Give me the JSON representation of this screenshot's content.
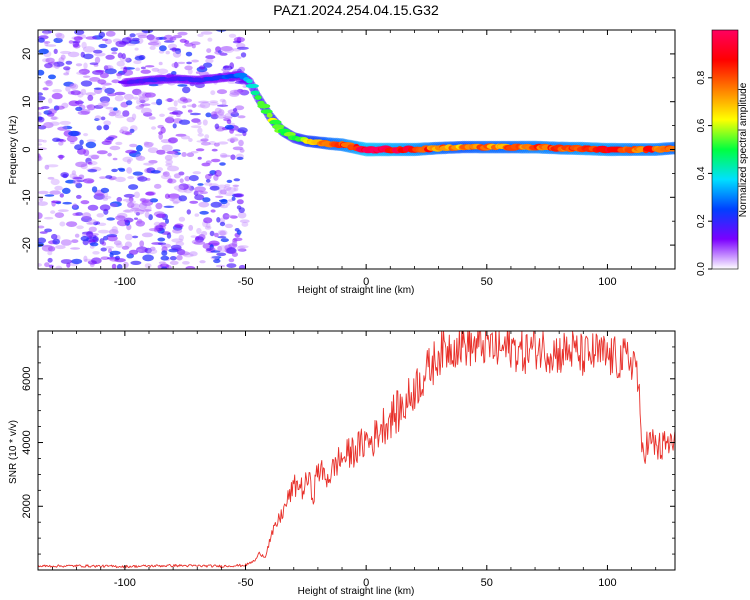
{
  "title": "PAZ1.2024.254.04.15.G32",
  "chart_data": [
    {
      "type": "heatmap",
      "title": "PAZ1.2024.254.04.15.G32",
      "xlabel": "Height of straight line (km)",
      "ylabel": "Frequency (Hz)",
      "xlim": [
        -136,
        128
      ],
      "ylim": [
        -25,
        25
      ],
      "xticks": [
        -100,
        -50,
        0,
        50,
        100
      ],
      "yticks": [
        -20,
        -10,
        0,
        10,
        20
      ],
      "grid": false,
      "noise_region_x": [
        -136,
        -50
      ],
      "noise_region_amplitude": [
        0.05,
        0.25
      ],
      "ridge": {
        "x": [
          -100,
          -90,
          -80,
          -70,
          -60,
          -52,
          -48,
          -45,
          -40,
          -35,
          -30,
          -25,
          -20,
          -15,
          -10,
          -5,
          0,
          10,
          20,
          30,
          40,
          50,
          60,
          70,
          80,
          90,
          100,
          110,
          120,
          128
        ],
        "frequency": [
          14,
          14.5,
          14.8,
          14.5,
          15,
          15.5,
          14,
          11,
          7,
          4,
          2.5,
          1.8,
          1.5,
          1.2,
          1,
          0.5,
          0,
          0,
          0,
          0.3,
          0.5,
          0.5,
          0.5,
          0.5,
          0.3,
          0.2,
          0,
          0,
          0,
          0.3
        ],
        "amplitude": [
          0.15,
          0.2,
          0.2,
          0.2,
          0.25,
          0.3,
          0.45,
          0.5,
          0.6,
          0.6,
          0.55,
          0.65,
          0.7,
          0.8,
          0.85,
          0.9,
          1.0,
          0.95,
          0.9,
          0.8,
          0.75,
          0.8,
          0.8,
          0.85,
          0.85,
          0.9,
          0.9,
          0.85,
          0.85,
          0.8
        ]
      },
      "colorbar": {
        "label": "Normalized spectral amplitude",
        "range": [
          0,
          1
        ],
        "ticks": [
          0.0,
          0.2,
          0.4,
          0.6,
          0.8
        ],
        "colormap": [
          "#ffffff",
          "#7b00ff",
          "#0040ff",
          "#00e0ff",
          "#00ff40",
          "#ffff00",
          "#ff8000",
          "#ff0000",
          "#ff0060"
        ]
      }
    },
    {
      "type": "line",
      "xlabel": "Height of straight line (km)",
      "ylabel": "SNR (10 * v/v)",
      "xlim": [
        -136,
        128
      ],
      "ylim": [
        0,
        7500
      ],
      "xticks": [
        -100,
        -50,
        0,
        50,
        100
      ],
      "yticks": [
        2000,
        4000,
        6000
      ],
      "grid": false,
      "color": "#e8302a",
      "series": [
        {
          "x": [
            -136,
            -120,
            -100,
            -80,
            -60,
            -50,
            -46,
            -44,
            -42,
            -40,
            -38,
            -36,
            -34,
            -32,
            -30,
            -28,
            -26,
            -24,
            -22,
            -20,
            -18,
            -16,
            -14,
            -12,
            -10,
            -8,
            -6,
            -4,
            -2,
            0,
            2,
            4,
            6,
            8,
            10,
            12,
            14,
            16,
            18,
            20,
            22,
            24,
            26,
            28,
            30,
            35,
            40,
            45,
            50,
            55,
            60,
            65,
            70,
            75,
            80,
            85,
            90,
            95,
            100,
            105,
            110,
            112,
            113,
            114,
            116,
            118,
            120,
            122,
            124,
            126,
            128
          ],
          "y": [
            120,
            130,
            110,
            140,
            120,
            150,
            300,
            550,
            400,
            900,
            1300,
            1600,
            1900,
            2300,
            2600,
            2700,
            2500,
            2900,
            2300,
            3200,
            3000,
            2900,
            3100,
            3400,
            3500,
            3600,
            3700,
            3800,
            3900,
            4100,
            4000,
            4200,
            4500,
            4600,
            4800,
            4900,
            5000,
            5200,
            5400,
            5700,
            5900,
            6100,
            6300,
            6500,
            6800,
            7000,
            7100,
            7000,
            7100,
            6900,
            7000,
            6800,
            7000,
            6900,
            6800,
            6900,
            6700,
            6800,
            6700,
            6600,
            6600,
            6500,
            5500,
            3800,
            3900,
            4000,
            3900,
            3800,
            3900,
            4000,
            3850
          ]
        }
      ]
    }
  ]
}
